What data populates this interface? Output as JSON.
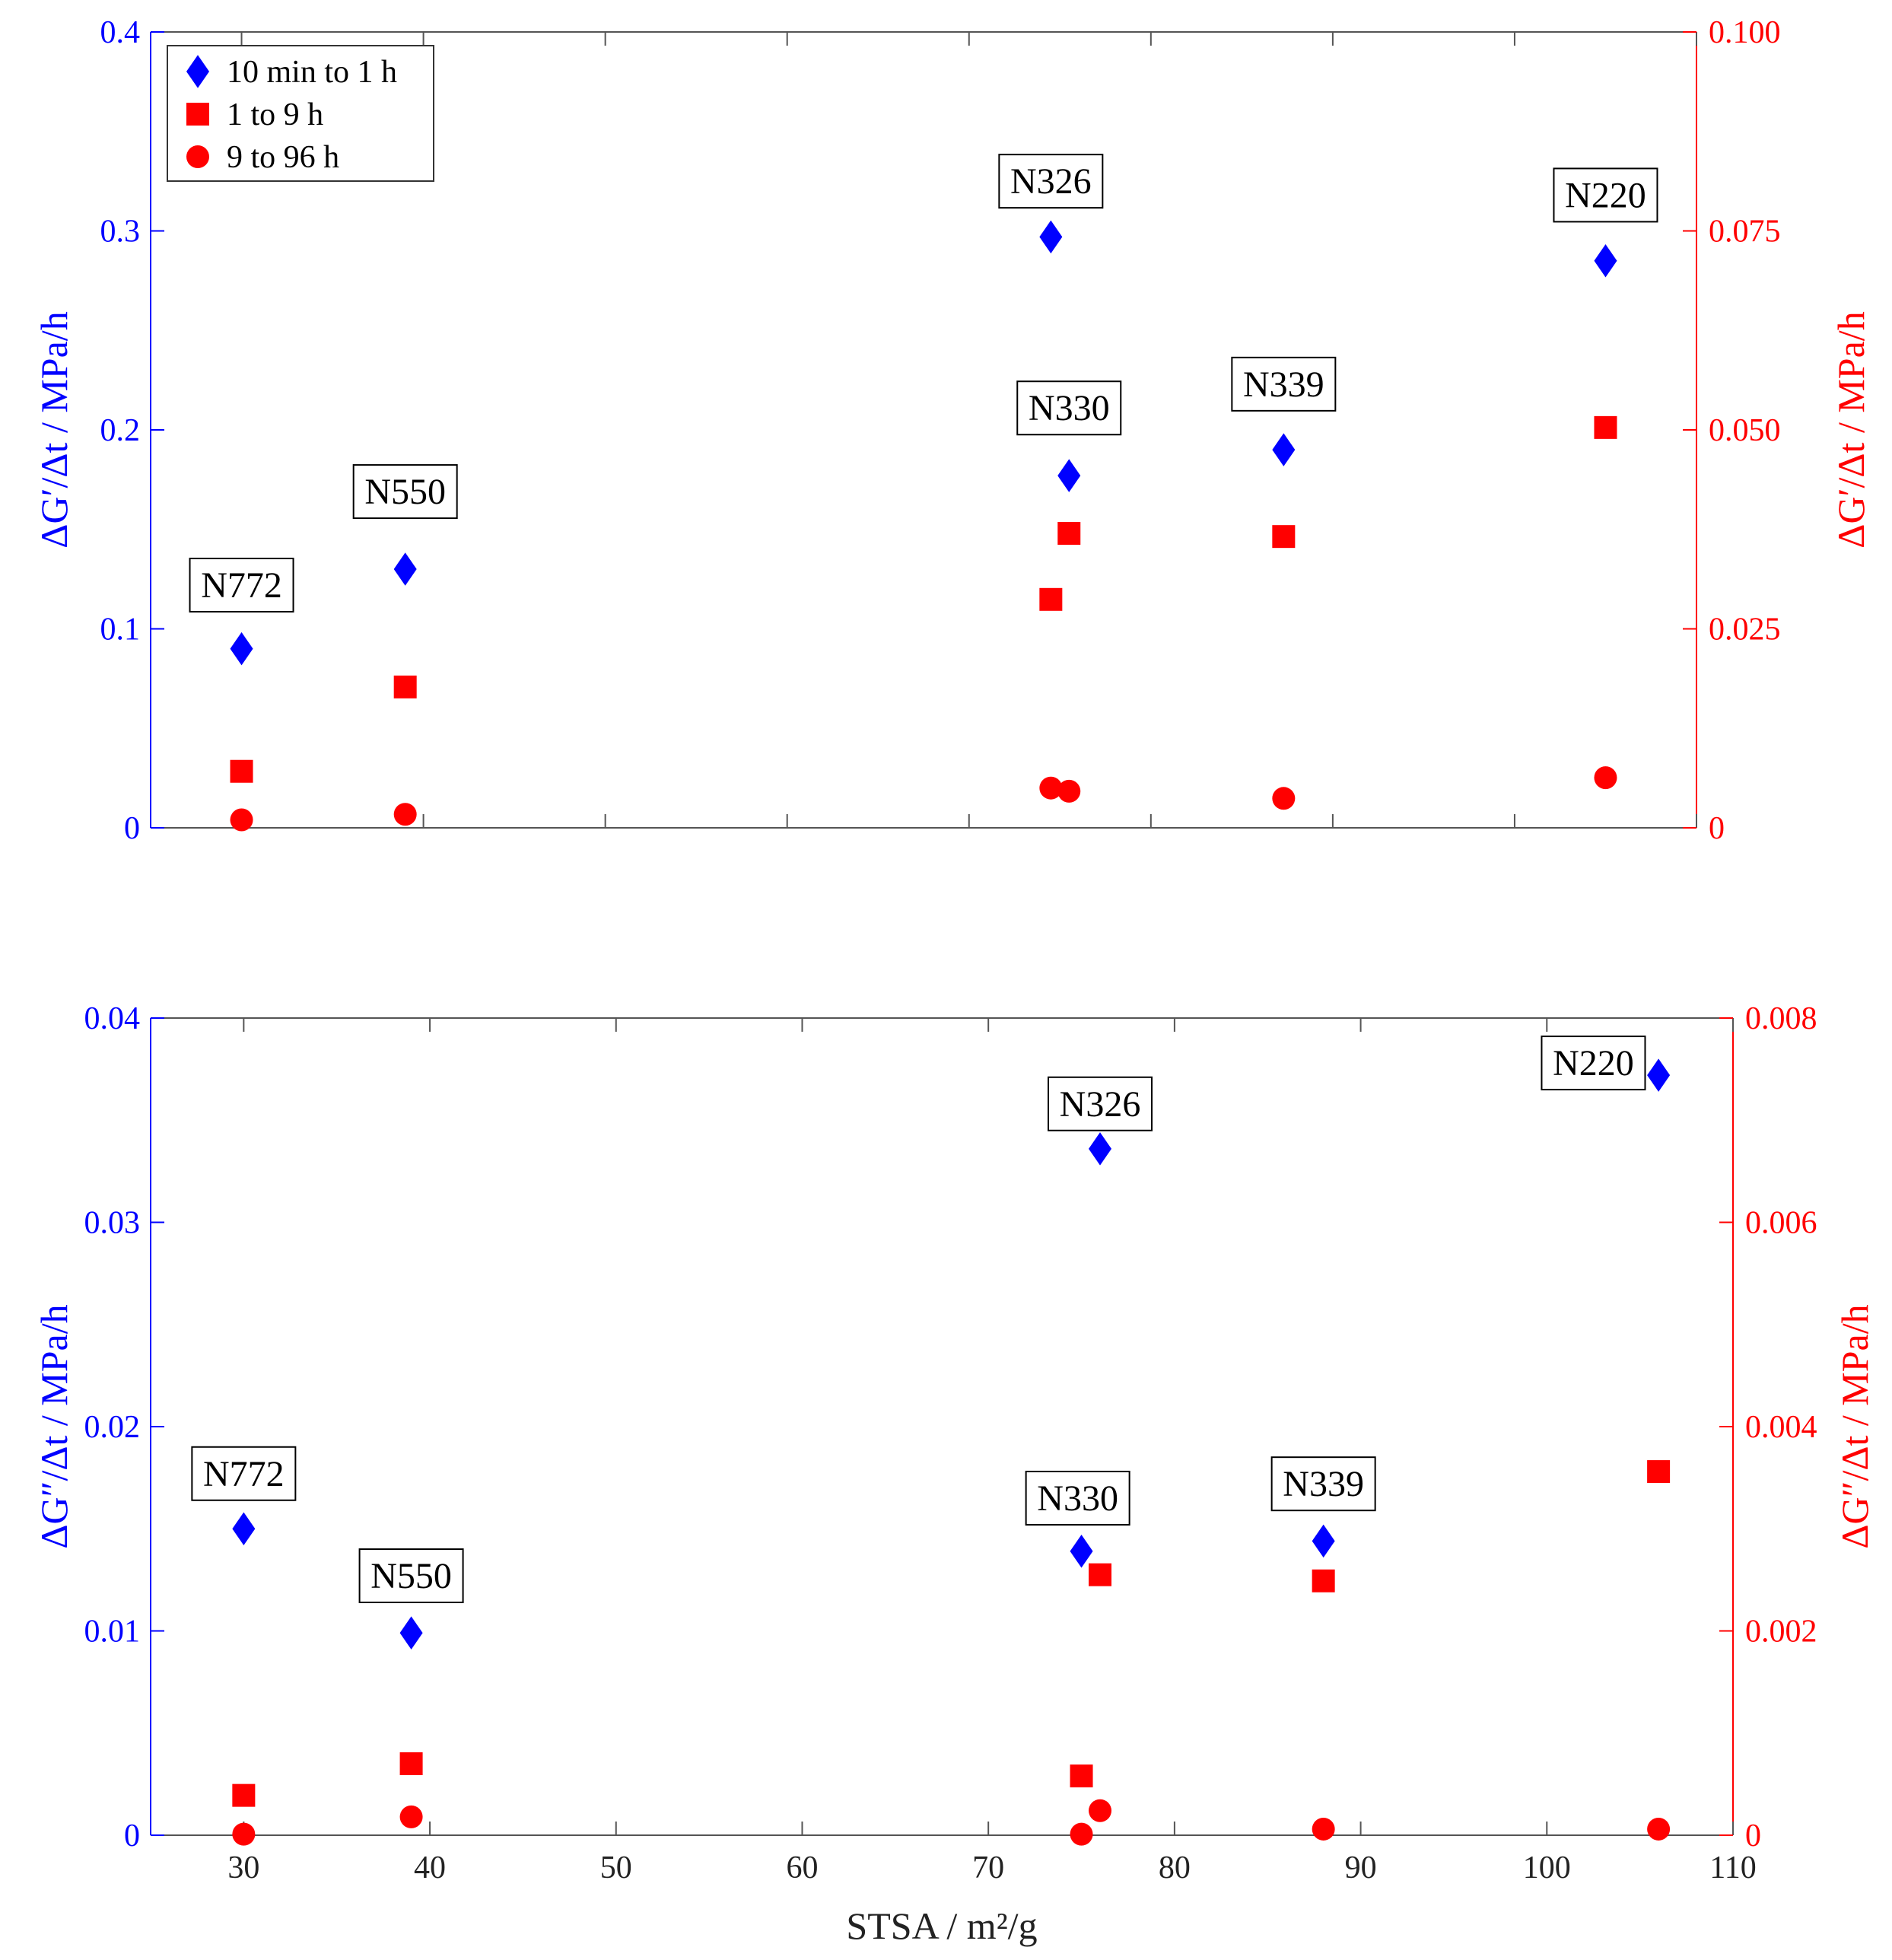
{
  "chart_data": [
    {
      "type": "scatter",
      "id": "top",
      "x_label": "",
      "y_label_left": "ΔG′/Δt / MPa/h",
      "y_label_right": "ΔG′/Δt / MPa/h",
      "xlim": [
        25,
        110
      ],
      "ylim_left": [
        0,
        0.4
      ],
      "ylim_right": [
        0,
        0.1
      ],
      "x_ticks": [
        30,
        40,
        50,
        60,
        70,
        80,
        90,
        100,
        110
      ],
      "x_tick_labels_visible": false,
      "y_ticks_left": [
        0,
        0.1,
        0.2,
        0.3,
        0.4
      ],
      "y_tick_labels_left": [
        "0",
        "0.1",
        "0.2",
        "0.3",
        "0.4"
      ],
      "y_ticks_right": [
        0,
        0.025,
        0.05,
        0.075,
        0.1
      ],
      "y_tick_labels_right": [
        "0",
        "0.025",
        "0.050",
        "0.075",
        "0.100"
      ],
      "legend": {
        "location": "top-left",
        "entries": [
          {
            "label": "10 min to 1 h",
            "marker": "diamond",
            "color": "#0000ff"
          },
          {
            "label": "1 to 9 h",
            "marker": "square",
            "color": "#ff0000"
          },
          {
            "label": "9 to 96 h",
            "marker": "circle",
            "color": "#ff0000"
          }
        ]
      },
      "series": [
        {
          "name": "10 min to 1 h",
          "axis": "left",
          "marker": "diamond",
          "color": "#0000ff",
          "points": [
            [
              30,
              0.09
            ],
            [
              39,
              0.13
            ],
            [
              74.5,
              0.297
            ],
            [
              75.5,
              0.177
            ],
            [
              87.3,
              0.19
            ],
            [
              105,
              0.285
            ]
          ]
        },
        {
          "name": "1 to 9 h",
          "axis": "right",
          "marker": "square",
          "color": "#ff0000",
          "points": [
            [
              30,
              0.0071
            ],
            [
              39,
              0.0177
            ],
            [
              74.5,
              0.0287
            ],
            [
              75.5,
              0.037
            ],
            [
              87.3,
              0.0366
            ],
            [
              105,
              0.0503
            ]
          ]
        },
        {
          "name": "9 to 96 h",
          "axis": "right",
          "marker": "circle",
          "color": "#ff0000",
          "points": [
            [
              30,
              0.001
            ],
            [
              39,
              0.0017
            ],
            [
              74.5,
              0.005
            ],
            [
              75.5,
              0.0046
            ],
            [
              87.3,
              0.0037
            ],
            [
              105,
              0.0063
            ]
          ]
        }
      ],
      "annotations": [
        {
          "text": "N772",
          "x": 30,
          "y": 0.122
        },
        {
          "text": "N550",
          "x": 39,
          "y": 0.169
        },
        {
          "text": "N326",
          "x": 74.5,
          "y": 0.325
        },
        {
          "text": "N330",
          "x": 75.5,
          "y": 0.211
        },
        {
          "text": "N339",
          "x": 87.3,
          "y": 0.223
        },
        {
          "text": "N220",
          "x": 105,
          "y": 0.318
        }
      ]
    },
    {
      "type": "scatter",
      "id": "bottom",
      "x_label": "STSA / m²/g",
      "y_label_left": "ΔG″/Δt / MPa/h",
      "y_label_right": "ΔG″/Δt / MPa/h",
      "xlim": [
        25,
        110
      ],
      "ylim_left": [
        0,
        0.04
      ],
      "ylim_right": [
        0,
        0.008
      ],
      "x_ticks": [
        30,
        40,
        50,
        60,
        70,
        80,
        90,
        100,
        110
      ],
      "x_tick_labels": [
        "30",
        "40",
        "50",
        "60",
        "70",
        "80",
        "90",
        "100",
        "110"
      ],
      "x_tick_labels_visible": true,
      "y_ticks_left": [
        0,
        0.01,
        0.02,
        0.03,
        0.04
      ],
      "y_tick_labels_left": [
        "0",
        "0.01",
        "0.02",
        "0.03",
        "0.04"
      ],
      "y_ticks_right": [
        0,
        0.002,
        0.004,
        0.006,
        0.008
      ],
      "y_tick_labels_right": [
        "0",
        "0.002",
        "0.004",
        "0.006",
        "0.008"
      ],
      "series": [
        {
          "name": "10 min to 1 h",
          "axis": "left",
          "marker": "diamond",
          "color": "#0000ff",
          "points": [
            [
              30,
              0.015
            ],
            [
              39,
              0.0099
            ],
            [
              76,
              0.0336
            ],
            [
              75,
              0.0139
            ],
            [
              88,
              0.0144
            ],
            [
              106,
              0.0372
            ]
          ]
        },
        {
          "name": "1 to 9 h",
          "axis": "right",
          "marker": "square",
          "color": "#ff0000",
          "points": [
            [
              30,
              0.00039
            ],
            [
              39,
              0.0007
            ],
            [
              75,
              0.00058
            ],
            [
              76,
              0.00255
            ],
            [
              88,
              0.00249
            ],
            [
              106,
              0.00356
            ]
          ]
        },
        {
          "name": "9 to 96 h",
          "axis": "right",
          "marker": "circle",
          "color": "#ff0000",
          "points": [
            [
              30,
              1e-05
            ],
            [
              39,
              0.00018
            ],
            [
              75,
              1e-05
            ],
            [
              76,
              0.00024
            ],
            [
              88,
              6e-05
            ],
            [
              106,
              6e-05
            ]
          ]
        }
      ],
      "annotations": [
        {
          "text": "N772",
          "x": 30,
          "y": 0.0177
        },
        {
          "text": "N550",
          "x": 39,
          "y": 0.0127
        },
        {
          "text": "N326",
          "x": 76,
          "y": 0.0358
        },
        {
          "text": "N330",
          "x": 74.8,
          "y": 0.0165
        },
        {
          "text": "N339",
          "x": 88,
          "y": 0.0172
        },
        {
          "text": "N220",
          "x": 102.5,
          "y": 0.0378
        }
      ]
    }
  ]
}
